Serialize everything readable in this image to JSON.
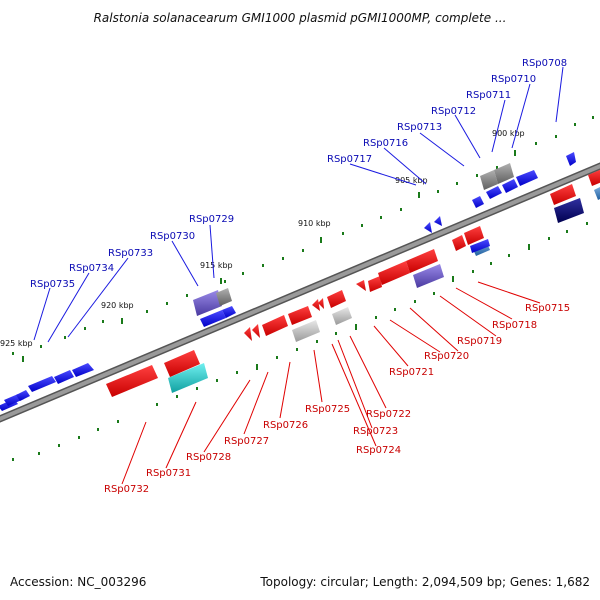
{
  "header": {
    "title": "Ralstonia solanacearum GMI1000 plasmid pGMI1000MP, complete ..."
  },
  "footer": {
    "accession": "Accession: NC_003296",
    "stats": "Topology: circular; Length: 2,094,509 bp; Genes: 1,682"
  },
  "ticks": [
    "900 kbp",
    "905 kbp",
    "910 kbp",
    "915 kbp",
    "920 kbp",
    "925 kbp"
  ],
  "genes_above": [
    "RSp0708",
    "RSp0710",
    "RSp0711",
    "RSp0712",
    "RSp0713",
    "RSp0716",
    "RSp0717",
    "RSp0729",
    "RSp0730",
    "RSp0733",
    "RSp0734",
    "RSp0735"
  ],
  "genes_below": [
    "RSp0715",
    "RSp0718",
    "RSp0719",
    "RSp0720",
    "RSp0721",
    "RSp0722",
    "RSp0723",
    "RSp0724",
    "RSp0725",
    "RSp0726",
    "RSp0727",
    "RSp0728",
    "RSp0731",
    "RSp0732"
  ],
  "colors": {
    "forward_gene": "#0000ff",
    "reverse_gene": "#ff0000",
    "backbone": "#888888",
    "gc_skew_dots": "#1a7a1a",
    "gray_gene": "#808080",
    "cyan_gene": "#20c0c0",
    "purple_gene": "#6a5acd",
    "navy_gene": "#101070"
  }
}
